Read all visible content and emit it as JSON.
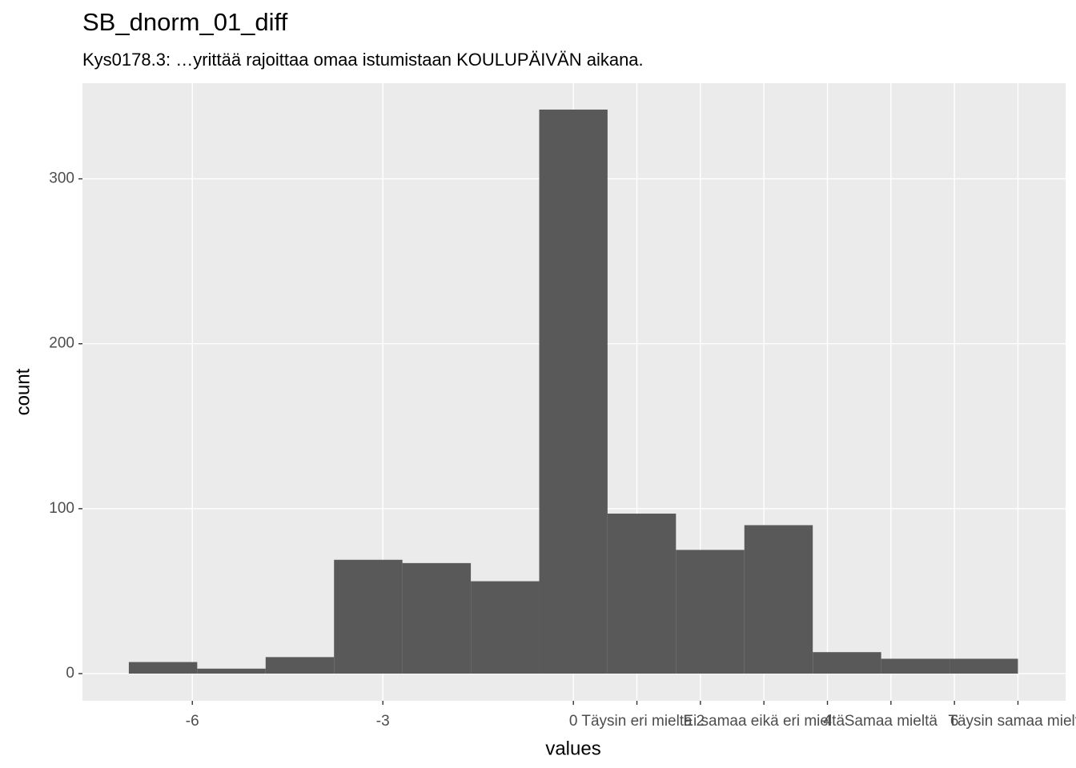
{
  "chart_data": {
    "type": "histogram",
    "title": "SB_dnorm_01_diff",
    "subtitle": "Kys0178.3: …yrittää rajoittaa omaa istumistaan KOULUPÄIVÄN aikana.",
    "x_label": "values",
    "y_label": "count",
    "bins": [
      -7,
      -5.923,
      -4.846,
      -3.769,
      -2.692,
      -1.615,
      -0.538,
      0.538,
      1.615,
      2.692,
      3.769,
      4.846,
      5.923,
      7
    ],
    "values": [
      7,
      3,
      10,
      69,
      67,
      56,
      342,
      97,
      75,
      90,
      13,
      9,
      9
    ],
    "color": "#595959",
    "xlim": [
      -7.73,
      7.75
    ],
    "ylim": [
      -16.5,
      358
    ],
    "xticks": [
      -6,
      -3,
      0,
      {
        "value": 1,
        "label": "Täysin eri mieltä"
      },
      2,
      {
        "value": 3,
        "label": "Ei samaa eikä eri mieltä"
      },
      4,
      {
        "value": 5,
        "label": "Samaa mieltä"
      },
      6,
      {
        "value": 7,
        "label": "Täysin samaa mieltä"
      }
    ],
    "yticks": [
      0,
      100,
      200,
      300
    ],
    "grid": true
  }
}
